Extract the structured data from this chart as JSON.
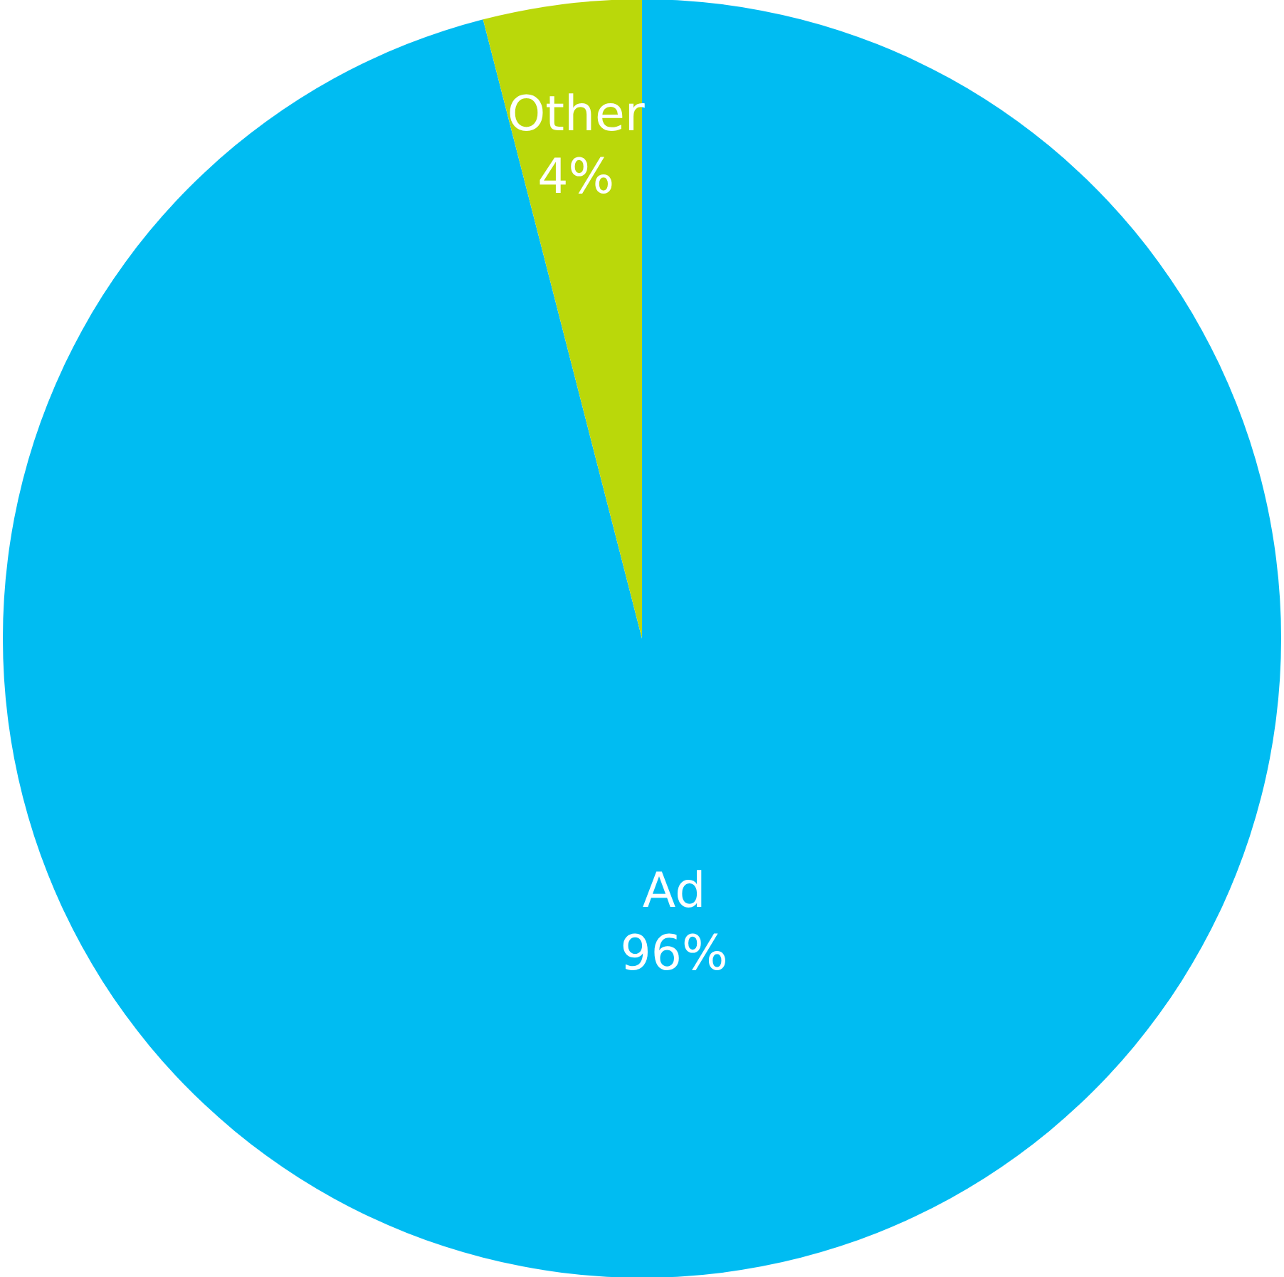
{
  "chart_data": {
    "type": "pie",
    "categories": [
      "Ad",
      "Other"
    ],
    "values": [
      96,
      4
    ],
    "colors": [
      "#00bcf2",
      "#bad80a"
    ],
    "value_labels": [
      "96%",
      "4%"
    ]
  }
}
